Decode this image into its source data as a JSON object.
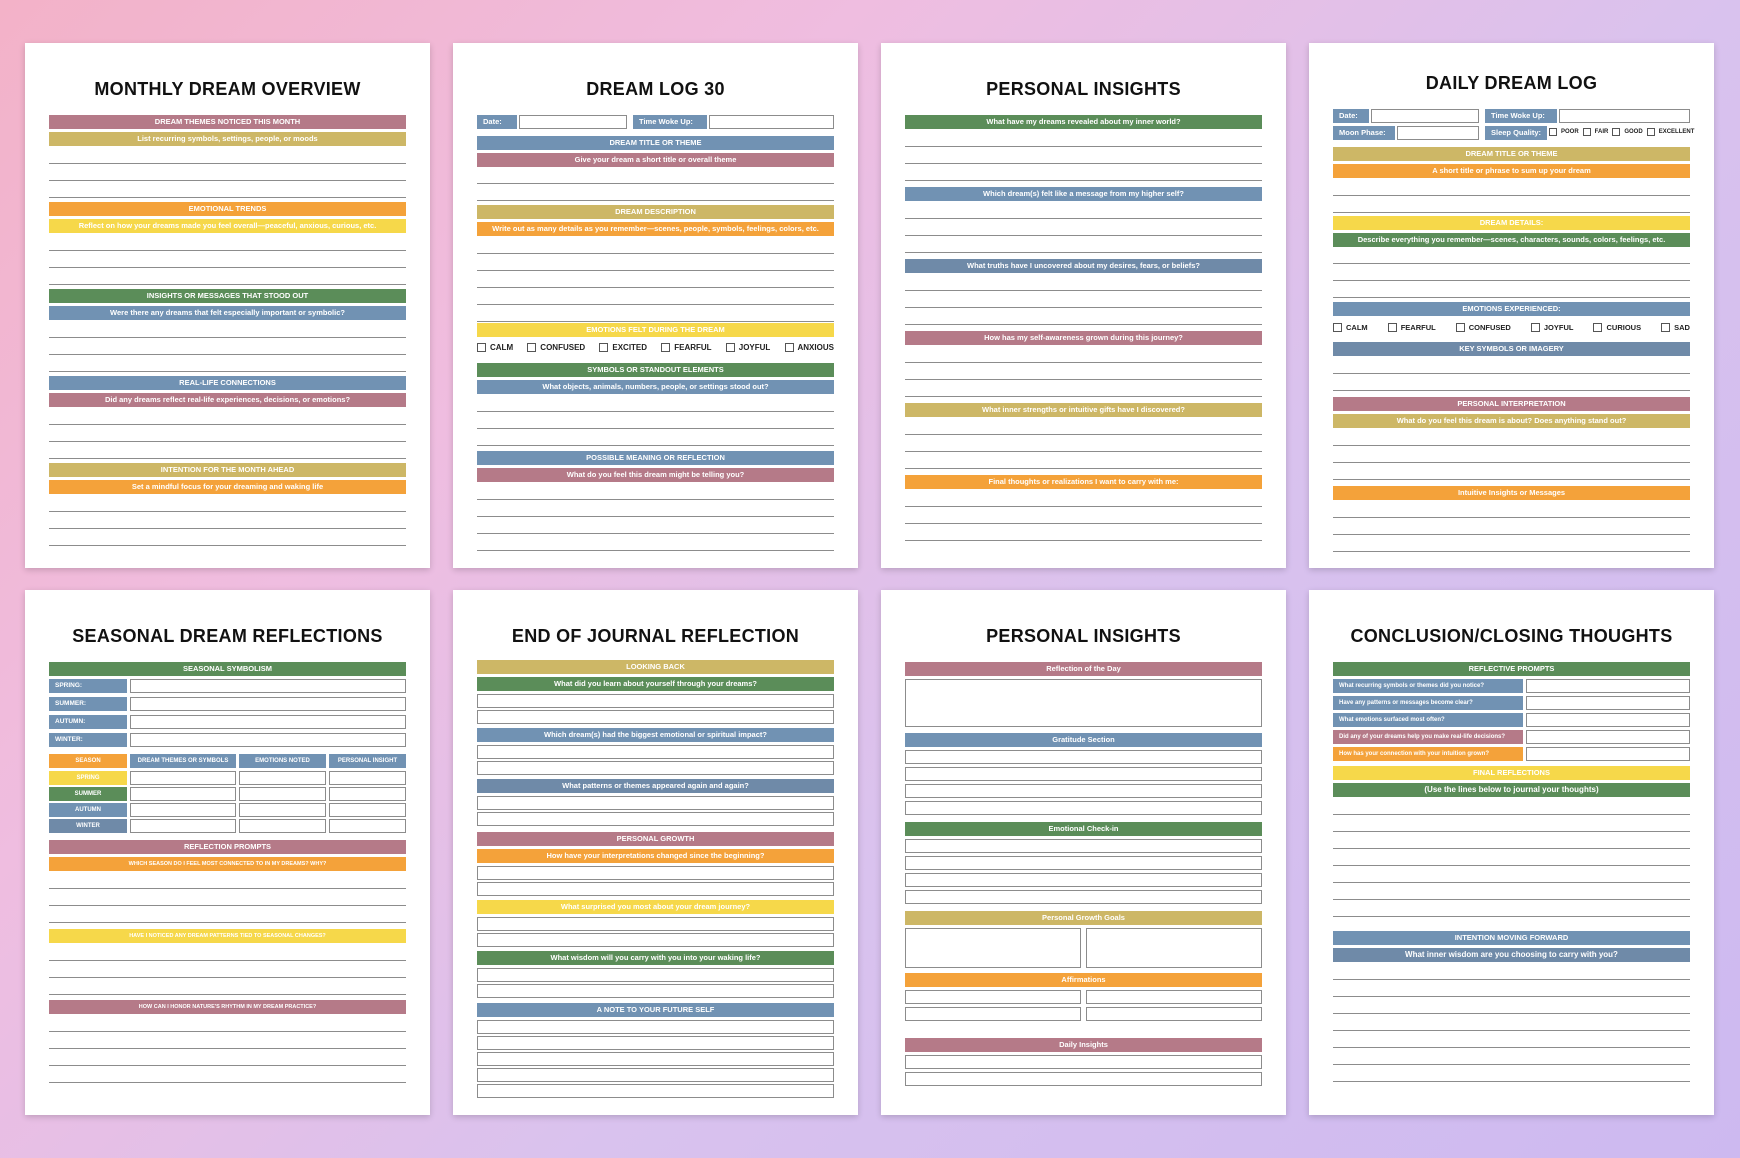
{
  "pages": [
    {
      "title": "MONTHLY DREAM OVERVIEW",
      "sections": [
        {
          "label": "DREAM THEMES NOTICED THIS MONTH",
          "prompt": "List recurring symbols, settings, people, or moods"
        },
        {
          "label": "EMOTIONAL TRENDS",
          "prompt": "Reflect on how your dreams made you feel overall—peaceful, anxious, curious, etc."
        },
        {
          "label": "INSIGHTS OR MESSAGES THAT STOOD OUT",
          "prompt": "Were there any dreams that felt especially important or symbolic?"
        },
        {
          "label": "REAL-LIFE CONNECTIONS",
          "prompt": "Did any dreams reflect real-life experiences, decisions, or emotions?"
        },
        {
          "label": "INTENTION FOR THE MONTH AHEAD",
          "prompt": "Set a mindful focus for your dreaming and waking life"
        }
      ]
    },
    {
      "title": "DREAM LOG 30",
      "date_label": "Date:",
      "woke_label": "Time Woke Up:",
      "sections": [
        {
          "label": "DREAM TITLE OR THEME",
          "prompt": "Give your dream a short title or overall theme"
        },
        {
          "label": "DREAM DESCRIPTION",
          "prompt": "Write out as many details as you remember—scenes, people, symbols, feelings, colors, etc."
        },
        {
          "label": "EMOTIONS FELT DURING THE DREAM"
        },
        {
          "label": "SYMBOLS OR STANDOUT ELEMENTS",
          "prompt": "What objects, animals, numbers, people, or settings stood out?"
        },
        {
          "label": "POSSIBLE MEANING OR REFLECTION",
          "prompt": "What do you feel this dream might be telling you?"
        }
      ],
      "emotions": [
        "CALM",
        "CONFUSED",
        "EXCITED",
        "FEARFUL",
        "JOYFUL",
        "ANXIOUS"
      ]
    },
    {
      "title": "PERSONAL INSIGHTS",
      "questions": [
        "What have my dreams revealed about my inner world?",
        "Which dream(s) felt like a message from my higher self?",
        "What truths have I uncovered about my desires, fears, or beliefs?",
        "How has my self-awareness grown during this journey?",
        "What inner strengths or intuitive gifts have I discovered?",
        "Final thoughts or realizations I want to carry with me:"
      ]
    },
    {
      "title": "DAILY DREAM LOG",
      "date_label": "Date:",
      "woke_label": "Time Woke Up:",
      "moon_label": "Moon Phase:",
      "sleep_label": "Sleep Quality:",
      "sleep_options": [
        "POOR",
        "FAIR",
        "GOOD",
        "EXCELLENT"
      ],
      "sections": [
        {
          "label": "DREAM TITLE OR THEME",
          "prompt": "A short title or phrase to sum up your dream"
        },
        {
          "label": "DREAM DETAILS:",
          "prompt": "Describe everything you remember—scenes, characters, sounds, colors, feelings, etc."
        },
        {
          "label": "EMOTIONS EXPERIENCED:"
        },
        {
          "label": "KEY SYMBOLS OR IMAGERY"
        },
        {
          "label": "PERSONAL INTERPRETATION",
          "prompt": "What do you feel this dream is about? Does anything stand out?"
        },
        {
          "label": "Intuitive Insights or Messages"
        }
      ],
      "emotions": [
        "CALM",
        "FEARFUL",
        "CONFUSED",
        "JOYFUL",
        "CURIOUS",
        "SAD"
      ]
    },
    {
      "title": "SEASONAL DREAM REFLECTIONS",
      "symbolism_label": "SEASONAL SYMBOLISM",
      "seasons_colon": [
        "SPRING:",
        "SUMMER:",
        "AUTUMN:",
        "WINTER:"
      ],
      "table_headers": [
        "SEASON",
        "DREAM THEMES OR SYMBOLS",
        "EMOTIONS NOTED",
        "PERSONAL INSIGHT"
      ],
      "seasons": [
        "SPRING",
        "SUMMER",
        "AUTUMN",
        "WINTER"
      ],
      "prompts_label": "REFLECTION PROMPTS",
      "prompts": [
        "WHICH SEASON DO I FEEL MOST CONNECTED TO IN MY DREAMS? WHY?",
        "HAVE I NOTICED ANY DREAM PATTERNS TIED TO SEASONAL CHANGES?",
        "HOW CAN I HONOR NATURE'S RHYTHM IN MY DREAM PRACTICE?"
      ]
    },
    {
      "title": "END OF JOURNAL REFLECTION",
      "sections": [
        {
          "label": "LOOKING BACK",
          "prompt": "What did you learn about yourself through your dreams?"
        },
        {
          "label": "Which dream(s) had the biggest emotional or spiritual impact?"
        },
        {
          "label": "What patterns or themes appeared again and again?"
        },
        {
          "label": "PERSONAL GROWTH",
          "prompt": "How have your interpretations changed since the beginning?"
        },
        {
          "label": "What surprised you most about your dream journey?"
        },
        {
          "label": "What wisdom will you carry with you into your waking life?"
        },
        {
          "label": "A NOTE TO YOUR FUTURE SELF"
        }
      ]
    },
    {
      "title": "PERSONAL INSIGHTS",
      "sections": [
        "Reflection of the Day",
        "Gratitude Section",
        "Emotional Check-in",
        "Personal Growth Goals",
        "Affirmations",
        "Daily Insights"
      ]
    },
    {
      "title": "CONCLUSION/CLOSING THOUGHTS",
      "prompts_label": "REFLECTIVE PROMPTS",
      "prompts": [
        "What recurring symbols or themes did you notice?",
        "Have any patterns or messages become clear?",
        "What emotions surfaced most often?",
        "Did any of your dreams help you make real-life decisions?",
        "How has your connection with your intuition grown?"
      ],
      "final_label": "FINAL REFLECTIONS",
      "final_prompt": "(Use the lines below to journal your thoughts)",
      "intention_label": "INTENTION MOVING FORWARD",
      "intention_prompt": "What inner wisdom are you choosing to carry with you?"
    }
  ],
  "colors": {
    "rose": "#b57a88",
    "mustard": "#cdb766",
    "orange": "#f4a23a",
    "yellow": "#f6d84a",
    "green": "#5b8d59",
    "blue": "#7192b3"
  }
}
